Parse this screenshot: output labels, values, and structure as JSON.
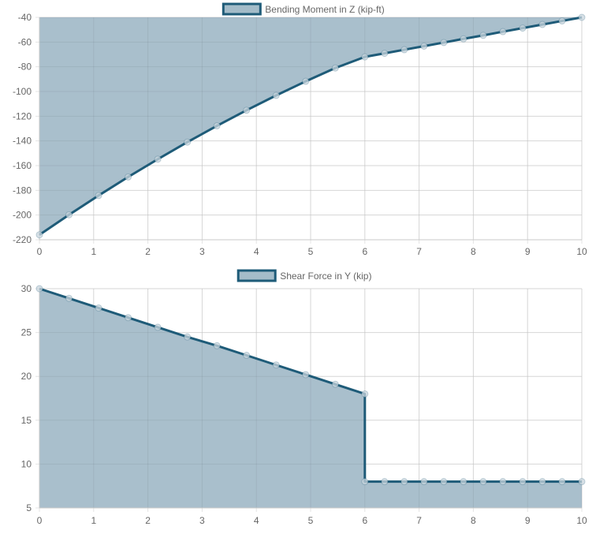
{
  "chart_data": [
    {
      "type": "area",
      "title": "",
      "legend_position": "top-center",
      "grid": true,
      "colors": {
        "line": "#1e5b78",
        "fill": "#a4bcc9",
        "point": "#c9d5dd",
        "grid": "#e4e4e4",
        "axis": "#c8c8c8",
        "tick_text": "#666666"
      },
      "xlim": [
        0,
        10
      ],
      "ylim": [
        -220,
        -40
      ],
      "x_ticks": [
        0,
        1,
        2,
        3,
        4,
        5,
        6,
        7,
        8,
        9,
        10
      ],
      "y_ticks": [
        -220,
        -200,
        -180,
        -160,
        -140,
        -120,
        -100,
        -80,
        -60,
        -40
      ],
      "x_tick_labels": [
        "0",
        "1",
        "2",
        "3",
        "4",
        "5",
        "6",
        "7",
        "8",
        "9",
        "10"
      ],
      "y_tick_labels": [
        "-220",
        "-200",
        "-180",
        "-160",
        "-140",
        "-120",
        "-100",
        "-80",
        "-60",
        "-40"
      ],
      "fill_toward": "top",
      "series": [
        {
          "name": "Bending Moment in Z (kip-ft)",
          "x": [
            0,
            0.545,
            1.091,
            1.636,
            2.182,
            2.727,
            3.273,
            3.818,
            4.364,
            4.909,
            5.455,
            6.0,
            6.364,
            6.727,
            7.091,
            7.455,
            7.818,
            8.182,
            8.545,
            8.909,
            9.273,
            9.636,
            10.0
          ],
          "values": [
            -216,
            -199.8,
            -184.2,
            -169.2,
            -154.8,
            -141,
            -127.8,
            -115.2,
            -103.2,
            -91.8,
            -81,
            -72,
            -69.1,
            -66.2,
            -63.3,
            -60.4,
            -57.4,
            -54.6,
            -51.6,
            -48.7,
            -45.8,
            -42.9,
            -40
          ]
        }
      ]
    },
    {
      "type": "area",
      "title": "",
      "legend_position": "top-center",
      "grid": true,
      "colors": {
        "line": "#1e5b78",
        "fill": "#a4bcc9",
        "point": "#c9d5dd",
        "grid": "#e4e4e4",
        "axis": "#c8c8c8",
        "tick_text": "#666666"
      },
      "xlim": [
        0,
        10
      ],
      "ylim": [
        5,
        30
      ],
      "x_ticks": [
        0,
        1,
        2,
        3,
        4,
        5,
        6,
        7,
        8,
        9,
        10
      ],
      "y_ticks": [
        5,
        10,
        15,
        20,
        25,
        30
      ],
      "x_tick_labels": [
        "0",
        "1",
        "2",
        "3",
        "4",
        "5",
        "6",
        "7",
        "8",
        "9",
        "10"
      ],
      "y_tick_labels": [
        "5",
        "10",
        "15",
        "20",
        "25",
        "30"
      ],
      "fill_toward": "bottom",
      "series": [
        {
          "name": "Shear Force in Y (kip)",
          "x": [
            0,
            0.545,
            1.091,
            1.636,
            2.182,
            2.727,
            3.273,
            3.818,
            4.364,
            4.909,
            5.455,
            6.0,
            6.0,
            6.364,
            6.727,
            7.091,
            7.455,
            7.818,
            8.182,
            8.545,
            8.909,
            9.273,
            9.636,
            10.0
          ],
          "values": [
            30,
            28.9,
            27.8,
            26.7,
            25.6,
            24.5,
            23.5,
            22.4,
            21.3,
            20.2,
            19.1,
            18,
            8,
            8,
            8,
            8,
            8,
            8,
            8,
            8,
            8,
            8,
            8,
            8
          ]
        }
      ]
    }
  ]
}
